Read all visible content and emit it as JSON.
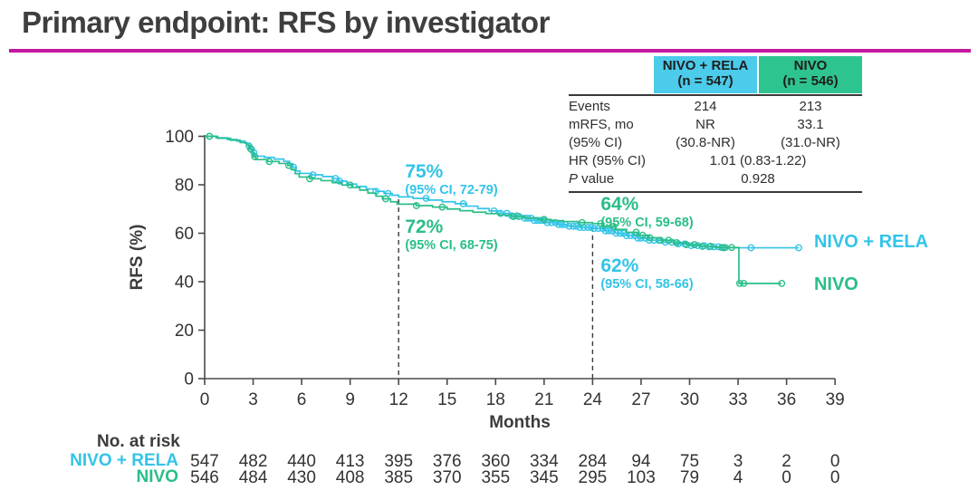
{
  "slide": {
    "title": "Primary endpoint: RFS by investigator"
  },
  "colors": {
    "title_rule": "#C2189E",
    "nivo_rela": "#33C4E8",
    "nivo": "#2ABE87",
    "nivo_rela_header_bg": "#4CCBEA",
    "nivo_header_bg": "#2EC48F",
    "axis": "#4a4a4a",
    "ink": "#333333"
  },
  "stats_table": {
    "columns": [
      {
        "line1": "NIVO + RELA",
        "line2": "(n = 547)"
      },
      {
        "line1": "NIVO",
        "line2": "(n = 546)"
      }
    ],
    "rows": [
      {
        "label": "Events",
        "v1": "214",
        "v2": "213"
      },
      {
        "label": "mRFS, mo",
        "v1": "NR",
        "v2": "33.1"
      },
      {
        "label": "(95% CI)",
        "v1": "(30.8-NR)",
        "v2": "(31.0-NR)"
      },
      {
        "label": "HR (95% CI)",
        "span": "1.01 (0.83-1.22)"
      },
      {
        "label_italic": "P",
        "label_rest": " value",
        "span": "0.928"
      }
    ]
  },
  "chart_data": {
    "type": "line",
    "subtype": "kaplan-meier-step",
    "title": "RFS by investigator",
    "xlabel": "Months",
    "ylabel": "RFS (%)",
    "xlim": [
      0,
      39
    ],
    "ylim": [
      0,
      100
    ],
    "xticks": [
      0,
      3,
      6,
      9,
      12,
      15,
      18,
      21,
      24,
      27,
      30,
      33,
      36,
      39
    ],
    "yticks": [
      0,
      20,
      40,
      60,
      80,
      100
    ],
    "grid": false,
    "dashed_lines": [
      {
        "month": 12,
        "from_pct": 74
      },
      {
        "month": 24,
        "from_pct": 62.5
      }
    ],
    "series": [
      {
        "name": "NIVO + RELA",
        "color": "#33C4E8",
        "label_x_month": 37.7,
        "label_y_pct": 56,
        "steps": [
          [
            0,
            100
          ],
          [
            0.7,
            99.4
          ],
          [
            1.4,
            98.7
          ],
          [
            2.0,
            98.0
          ],
          [
            2.5,
            97.1
          ],
          [
            2.75,
            96.0
          ],
          [
            2.85,
            94.6
          ],
          [
            2.95,
            93.2
          ],
          [
            3.1,
            91.8
          ],
          [
            3.7,
            91.3
          ],
          [
            4.3,
            90.6
          ],
          [
            4.9,
            89.7
          ],
          [
            5.25,
            88.7
          ],
          [
            5.45,
            87.2
          ],
          [
            5.65,
            85.7
          ],
          [
            5.9,
            84.7
          ],
          [
            6.6,
            84.1
          ],
          [
            7.3,
            83.4
          ],
          [
            7.9,
            82.6
          ],
          [
            8.3,
            81.5
          ],
          [
            8.8,
            80.3
          ],
          [
            9.4,
            79.3
          ],
          [
            10.0,
            78.3
          ],
          [
            10.6,
            77.3
          ],
          [
            11.1,
            76.4
          ],
          [
            11.6,
            75.7
          ],
          [
            12.0,
            75.0
          ],
          [
            12.9,
            74.4
          ],
          [
            13.8,
            73.7
          ],
          [
            14.7,
            73.0
          ],
          [
            15.5,
            72.2
          ],
          [
            16.2,
            71.2
          ],
          [
            16.9,
            70.2
          ],
          [
            17.6,
            69.2
          ],
          [
            18.3,
            68.2
          ],
          [
            19.0,
            67.2
          ],
          [
            19.7,
            66.2
          ],
          [
            20.4,
            65.3
          ],
          [
            21.1,
            64.4
          ],
          [
            21.8,
            63.6
          ],
          [
            22.5,
            62.9
          ],
          [
            23.2,
            62.4
          ],
          [
            24.0,
            62.0
          ],
          [
            24.7,
            61.0
          ],
          [
            25.4,
            60.0
          ],
          [
            26.1,
            59.0
          ],
          [
            26.8,
            58.0
          ],
          [
            27.5,
            57.1
          ],
          [
            28.3,
            56.3
          ],
          [
            29.1,
            55.6
          ],
          [
            30.0,
            54.9
          ],
          [
            31.0,
            54.4
          ],
          [
            32.0,
            54.0
          ],
          [
            36.75,
            54.0
          ]
        ],
        "censor_months": [
          0.3,
          2.75,
          2.9,
          3.05,
          5.5,
          6.7,
          8.1,
          8.35,
          10.6,
          11.35,
          13.7,
          16.0,
          17.9,
          18.3,
          18.7,
          19.0,
          19.3,
          19.8,
          20.0,
          20.2,
          20.4,
          20.6,
          20.8,
          21.0,
          21.2,
          21.45,
          21.7,
          21.9,
          22.1,
          22.3,
          22.55,
          22.8,
          23.0,
          23.2,
          23.45,
          23.7,
          23.9,
          24.1,
          24.35,
          24.6,
          24.8,
          25.0,
          25.2,
          25.45,
          25.7,
          25.9,
          26.1,
          26.35,
          26.6,
          26.8,
          27.0,
          27.25,
          27.5,
          27.8,
          28.1,
          28.5,
          28.9,
          29.3,
          29.7,
          30.1,
          30.5,
          30.9,
          31.2,
          31.5,
          31.8,
          32.1,
          33.8,
          36.75
        ]
      },
      {
        "name": "NIVO",
        "color": "#2ABE87",
        "label_x_month": 37.7,
        "label_y_pct": 38.5,
        "steps": [
          [
            0,
            100
          ],
          [
            0.8,
            99.2
          ],
          [
            1.6,
            98.4
          ],
          [
            2.2,
            97.4
          ],
          [
            2.6,
            96.3
          ],
          [
            2.8,
            94.8
          ],
          [
            2.9,
            93.2
          ],
          [
            3.0,
            91.6
          ],
          [
            3.15,
            90.4
          ],
          [
            3.9,
            89.6
          ],
          [
            4.6,
            88.8
          ],
          [
            5.15,
            88.0
          ],
          [
            5.35,
            86.3
          ],
          [
            5.6,
            84.6
          ],
          [
            5.85,
            83.2
          ],
          [
            6.5,
            82.5
          ],
          [
            7.2,
            81.7
          ],
          [
            7.9,
            80.9
          ],
          [
            8.5,
            79.9
          ],
          [
            9.1,
            78.9
          ],
          [
            9.6,
            77.8
          ],
          [
            10.1,
            76.6
          ],
          [
            10.6,
            75.3
          ],
          [
            11.0,
            74.2
          ],
          [
            11.5,
            73.0
          ],
          [
            11.9,
            72.0
          ],
          [
            13.1,
            71.4
          ],
          [
            14.1,
            70.8
          ],
          [
            15.0,
            70.0
          ],
          [
            15.8,
            69.3
          ],
          [
            16.6,
            68.7
          ],
          [
            17.4,
            68.1
          ],
          [
            18.2,
            67.5
          ],
          [
            19.0,
            66.9
          ],
          [
            19.8,
            66.3
          ],
          [
            20.6,
            65.7
          ],
          [
            21.4,
            65.2
          ],
          [
            22.2,
            64.8
          ],
          [
            23.1,
            64.4
          ],
          [
            24.0,
            64.0
          ],
          [
            24.7,
            62.8
          ],
          [
            25.4,
            61.6
          ],
          [
            26.1,
            60.4
          ],
          [
            26.8,
            59.2
          ],
          [
            27.5,
            58.1
          ],
          [
            28.2,
            57.1
          ],
          [
            29.0,
            56.1
          ],
          [
            29.8,
            55.3
          ],
          [
            30.6,
            54.6
          ],
          [
            31.6,
            54.1
          ],
          [
            33.05,
            39.3
          ],
          [
            35.7,
            39.3
          ]
        ],
        "censor_months": [
          0.3,
          2.85,
          3.1,
          4.0,
          5.2,
          6.5,
          9.0,
          11.2,
          13.1,
          14.7,
          19.1,
          19.45,
          21.0,
          23.35,
          24.5,
          25.3,
          26.7,
          27.1,
          27.55,
          28.2,
          28.7,
          29.2,
          29.8,
          30.3,
          30.8,
          31.3,
          32.0,
          32.2,
          32.6,
          33.1,
          33.35,
          35.7
        ]
      }
    ],
    "annotations": [
      {
        "value": "75%",
        "ci": "(95% CI, 72-79)",
        "series": "NIVO + RELA",
        "x_month": 12.4,
        "y_pct": 89.5
      },
      {
        "value": "72%",
        "ci": "(95% CI, 68-75)",
        "series": "NIVO",
        "x_month": 12.4,
        "y_pct": 66.5
      },
      {
        "value": "64%",
        "ci": "(95% CI, 59-68)",
        "series": "NIVO",
        "x_month": 24.5,
        "y_pct": 76
      },
      {
        "value": "62%",
        "ci": "(95% CI, 58-66)",
        "series": "NIVO + RELA",
        "x_month": 24.5,
        "y_pct": 50.5
      }
    ],
    "at_risk": {
      "title": "No. at risk",
      "months": [
        0,
        3,
        6,
        9,
        12,
        15,
        18,
        21,
        24,
        27,
        30,
        33,
        36,
        39
      ],
      "rows": [
        {
          "label": "NIVO + RELA",
          "counts": [
            547,
            482,
            440,
            413,
            395,
            376,
            360,
            334,
            284,
            94,
            75,
            3,
            2,
            0
          ]
        },
        {
          "label": "NIVO",
          "counts": [
            546,
            484,
            430,
            408,
            385,
            370,
            355,
            345,
            295,
            103,
            79,
            4,
            0,
            0
          ]
        }
      ]
    }
  }
}
